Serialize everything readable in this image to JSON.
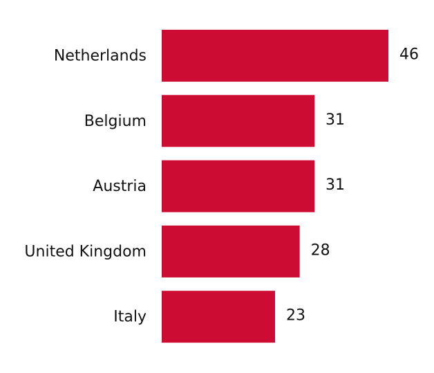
{
  "chart_data": {
    "type": "hbar",
    "categories": [
      "Netherlands",
      "Belgium",
      "Austria",
      "United Kingdom",
      "Italy"
    ],
    "values": [
      46,
      31,
      31,
      28,
      23
    ],
    "color": "#cc0c33"
  }
}
